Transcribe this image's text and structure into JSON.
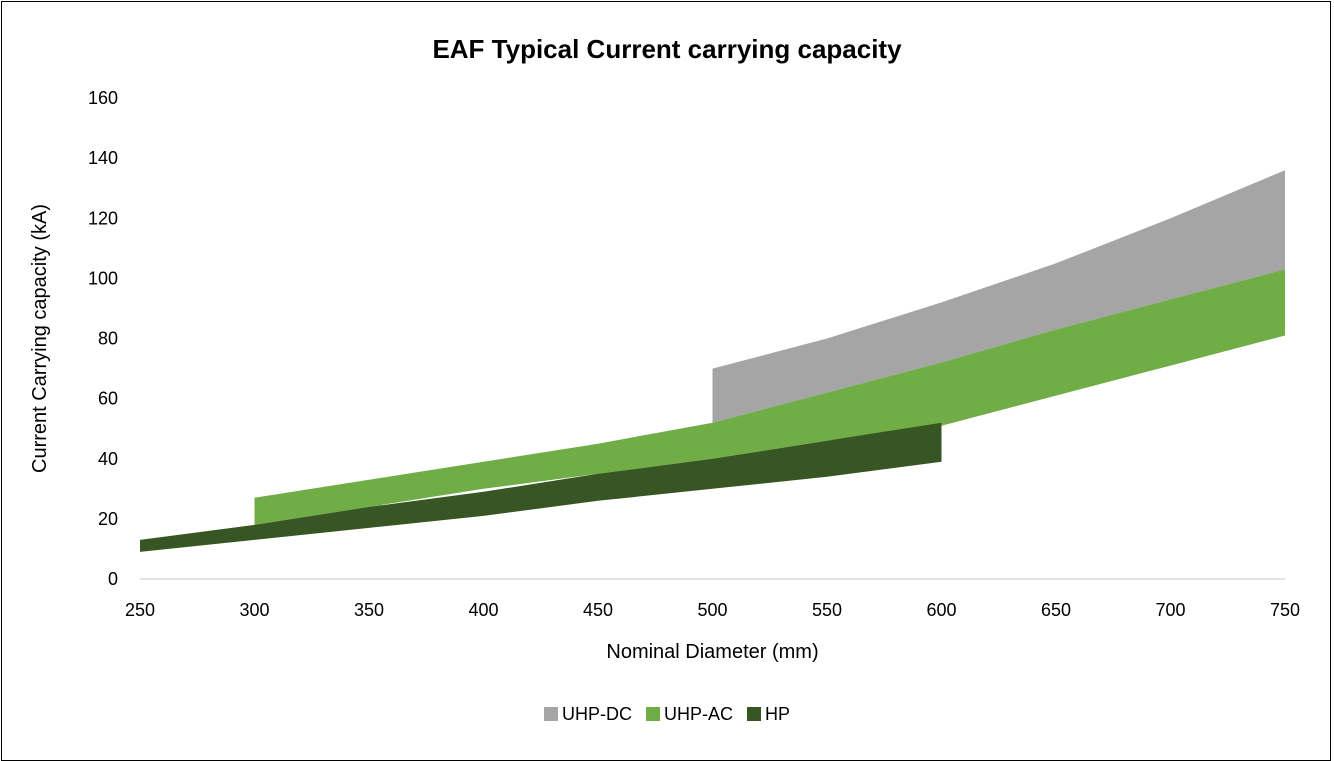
{
  "chart_data": {
    "type": "area",
    "title": "EAF Typical Current carrying capacity",
    "xlabel": "Nominal Diameter (mm)",
    "ylabel": "Current Carrying capacity (kA)",
    "xlim": [
      250,
      750
    ],
    "ylim": [
      0,
      160
    ],
    "x_ticks": [
      250,
      300,
      350,
      400,
      450,
      500,
      550,
      600,
      650,
      700,
      750
    ],
    "y_ticks": [
      0,
      20,
      40,
      60,
      80,
      100,
      120,
      140,
      160
    ],
    "grid": false,
    "legend_position": "bottom",
    "series": [
      {
        "name": "UHP-DC",
        "color": "#a5a5a5",
        "x": [
          500,
          550,
          600,
          650,
          700,
          750
        ],
        "lower": [
          52,
          62,
          72,
          83,
          93,
          103
        ],
        "upper": [
          70,
          80,
          92,
          105,
          120,
          136
        ]
      },
      {
        "name": "UHP-AC",
        "color": "#70ad47",
        "x": [
          300,
          350,
          400,
          450,
          500,
          550,
          600,
          650,
          700,
          750
        ],
        "lower": [
          18,
          24,
          30,
          35,
          40,
          46,
          51,
          61,
          71,
          81
        ],
        "upper": [
          27,
          33,
          39,
          45,
          52,
          62,
          72,
          83,
          93,
          103
        ]
      },
      {
        "name": "HP",
        "color": "#375623",
        "x": [
          250,
          300,
          350,
          400,
          450,
          500,
          550,
          600
        ],
        "lower": [
          9,
          13,
          17,
          21,
          26,
          30,
          34,
          39
        ],
        "upper": [
          13,
          18,
          24,
          29,
          35,
          40,
          46,
          52
        ]
      }
    ]
  }
}
